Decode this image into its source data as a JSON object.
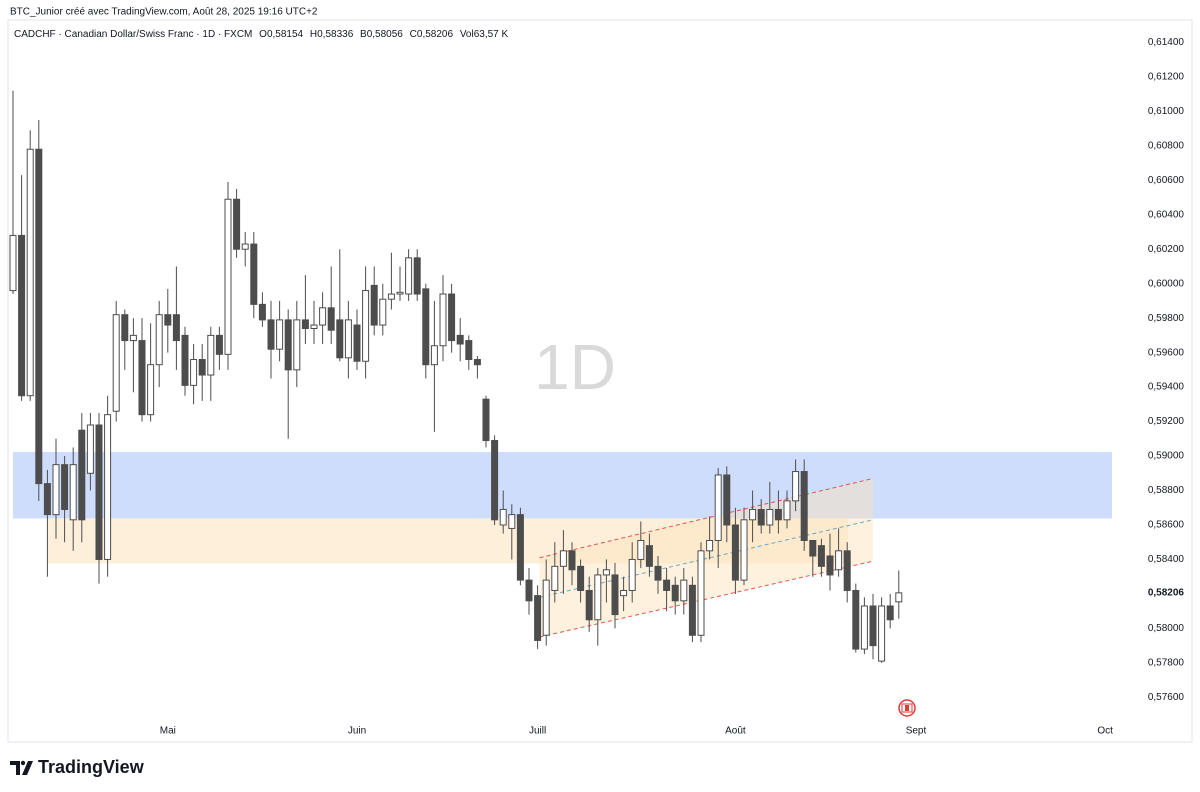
{
  "header": {
    "attribution": "BTC_Junior créé avec TradingView.com, Août 28, 2025 19:16 UTC+2"
  },
  "footer": {
    "brand": "TradingView"
  },
  "chart_data": {
    "type": "candlestick",
    "symbol": "CADCHF · Canadian Dollar/Swiss Franc · 1D · FXCM",
    "ohlc_text": [
      "O0,58154",
      "H0,58336",
      "B0,58056",
      "C0,58206",
      "Vol63,57 K"
    ],
    "watermark": "1D",
    "up_color": "#ffffff",
    "down_color": "#4d4d4d",
    "wick_color": "#4d4d4d",
    "grid": false,
    "ylim": [
      0.5748,
      0.6153
    ],
    "yticks": [
      {
        "value": 0.576,
        "label": "0,57600"
      },
      {
        "value": 0.578,
        "label": "0,57800"
      },
      {
        "value": 0.58,
        "label": "0,58000"
      },
      {
        "value": 0.584,
        "label": "0,58400"
      },
      {
        "value": 0.586,
        "label": "0,58600"
      },
      {
        "value": 0.588,
        "label": "0,58800"
      },
      {
        "value": 0.59,
        "label": "0,59000"
      },
      {
        "value": 0.592,
        "label": "0,59200"
      },
      {
        "value": 0.594,
        "label": "0,59400"
      },
      {
        "value": 0.596,
        "label": "0,59600"
      },
      {
        "value": 0.598,
        "label": "0,59800"
      },
      {
        "value": 0.6,
        "label": "0,60000"
      },
      {
        "value": 0.602,
        "label": "0,60200"
      },
      {
        "value": 0.604,
        "label": "0,60400"
      },
      {
        "value": 0.606,
        "label": "0,60600"
      },
      {
        "value": 0.608,
        "label": "0,60800"
      },
      {
        "value": 0.61,
        "label": "0,61000"
      },
      {
        "value": 0.612,
        "label": "0,61200"
      },
      {
        "value": 0.614,
        "label": "0,61400"
      }
    ],
    "last_price": {
      "value": 0.58206,
      "label": "0,58206"
    },
    "zones": [
      {
        "color": "#c6d7fb",
        "low": 0.58638,
        "high": 0.59023
      },
      {
        "color": "#fdedd6",
        "low": 0.58377,
        "high": 0.58638
      }
    ],
    "channel": {
      "color": "#e05555",
      "mid_color": "#6aa7c9",
      "fill": "#fde3b8",
      "upper": [
        0.5841,
        0.5887
      ],
      "middle": [
        0.5818,
        0.5863
      ],
      "lower": [
        0.5795,
        0.5839
      ]
    },
    "categories": [
      null,
      null,
      null,
      null,
      null,
      null,
      null,
      null,
      null,
      null,
      null,
      null,
      null,
      null,
      null,
      null,
      null,
      null,
      "Mai",
      null,
      null,
      null,
      null,
      null,
      null,
      null,
      null,
      null,
      null,
      null,
      null,
      null,
      null,
      null,
      null,
      null,
      null,
      null,
      null,
      null,
      "Juin",
      null,
      null,
      null,
      null,
      null,
      null,
      null,
      null,
      null,
      null,
      null,
      null,
      null,
      null,
      null,
      null,
      null,
      null,
      null,
      null,
      "Juill",
      null,
      null,
      null,
      null,
      null,
      null,
      null,
      null,
      null,
      null,
      null,
      null,
      null,
      null,
      null,
      null,
      null,
      null,
      null,
      null,
      null,
      null,
      "Août",
      null,
      null,
      null,
      null,
      null,
      null,
      null,
      null,
      null,
      null,
      null,
      null,
      null,
      null,
      null,
      null,
      null,
      null,
      null,
      null,
      "Sept",
      null,
      null,
      null,
      null,
      null,
      null,
      null,
      null,
      null,
      null,
      null,
      null,
      null,
      null,
      null,
      null,
      null,
      null,
      null,
      null,
      null,
      "Oct",
      null
    ],
    "open": [
      0.5996,
      0.6028,
      0.5935,
      0.6078,
      0.5884,
      0.5866,
      0.5895,
      0.5863,
      0.5915,
      0.589,
      0.5918,
      0.584,
      0.5926,
      0.5982,
      0.5967,
      0.5967,
      0.5924,
      0.5953,
      0.5982,
      0.5982,
      0.597,
      0.5941,
      0.5956,
      0.5947,
      0.597,
      0.5959,
      0.6049,
      0.602,
      0.6023,
      0.5988,
      0.5979,
      0.5962,
      0.5979,
      0.595,
      0.5979,
      0.5974,
      0.5976,
      0.5986,
      0.5979,
      0.5957,
      0.5976,
      0.5955,
      0.5999,
      0.5976,
      0.5991,
      0.5994,
      0.5994,
      0.6015,
      0.5997,
      0.5953,
      0.5964,
      0.5994,
      0.597,
      0.5967,
      0.5956,
      0.5933,
      0.5909,
      0.586,
      0.5858,
      0.5866,
      0.5828,
      0.5819,
      0.5796,
      0.5822,
      0.5836,
      0.5845,
      0.5836,
      0.5822,
      0.5805,
      0.5831,
      0.5831,
      0.5819,
      0.5822,
      0.584,
      0.5848,
      0.5836,
      0.5828,
      0.5825,
      0.5816,
      0.5825,
      0.5796,
      0.5845,
      0.5851,
      0.5889,
      0.586,
      0.5828,
      0.5863,
      0.5869,
      0.586,
      0.5869,
      0.5863,
      0.5874,
      0.5891,
      0.5851,
      0.5848,
      0.5842,
      0.5834,
      0.5845,
      0.5822,
      0.5788,
      0.5813,
      0.5781,
      0.5813,
      0.58154,
      null,
      null,
      null,
      null,
      null,
      null,
      null,
      null,
      null,
      null,
      null,
      null,
      null,
      null,
      null,
      null,
      null,
      null,
      null,
      null,
      null,
      null,
      null,
      null,
      null
    ],
    "high": [
      0.6112,
      0.6063,
      0.6089,
      0.6095,
      0.5892,
      0.591,
      0.59,
      0.5905,
      0.5925,
      0.5925,
      0.5925,
      0.5935,
      0.599,
      0.5985,
      0.598,
      0.598,
      0.5977,
      0.599,
      0.5997,
      0.601,
      0.5975,
      0.5965,
      0.5965,
      0.5975,
      0.5975,
      0.6059,
      0.6055,
      0.603,
      0.603,
      0.5995,
      0.599,
      0.599,
      0.5985,
      0.599,
      0.6005,
      0.599,
      0.5995,
      0.601,
      0.602,
      0.599,
      0.5985,
      0.601,
      0.601,
      0.6,
      0.6018,
      0.601,
      0.602,
      0.602,
      0.6,
      0.599,
      0.6005,
      0.6,
      0.598,
      0.597,
      0.5958,
      0.5935,
      0.5912,
      0.588,
      0.5872,
      0.587,
      0.5835,
      0.5825,
      0.584,
      0.585,
      0.5857,
      0.585,
      0.584,
      0.583,
      0.5835,
      0.584,
      0.5838,
      0.583,
      0.585,
      0.5862,
      0.5855,
      0.5842,
      0.5835,
      0.583,
      0.5835,
      0.583,
      0.585,
      0.5865,
      0.5893,
      0.5894,
      0.587,
      0.587,
      0.588,
      0.5875,
      0.5885,
      0.588,
      0.588,
      0.5898,
      0.5898,
      0.585,
      0.5852,
      0.5855,
      0.5858,
      0.585,
      0.5826,
      0.5818,
      0.582,
      0.5818,
      0.582,
      0.58336,
      null,
      null,
      null,
      null,
      null,
      null,
      null,
      null,
      null,
      null,
      null,
      null,
      null,
      null,
      null,
      null,
      null,
      null,
      null,
      null,
      null,
      null,
      null,
      null,
      null
    ],
    "low": [
      0.5994,
      0.5932,
      0.5932,
      0.5874,
      0.583,
      0.5852,
      0.585,
      0.5845,
      0.585,
      0.588,
      0.5826,
      0.583,
      0.592,
      0.595,
      0.5937,
      0.592,
      0.592,
      0.594,
      0.596,
      0.595,
      0.5935,
      0.593,
      0.5932,
      0.5932,
      0.595,
      0.595,
      0.6015,
      0.601,
      0.598,
      0.5975,
      0.5945,
      0.5955,
      0.591,
      0.594,
      0.5965,
      0.5965,
      0.5965,
      0.5965,
      0.5955,
      0.5945,
      0.595,
      0.5945,
      0.597,
      0.597,
      0.5985,
      0.599,
      0.599,
      0.599,
      0.5945,
      0.5914,
      0.5955,
      0.596,
      0.5955,
      0.595,
      0.5945,
      0.5905,
      0.586,
      0.5855,
      0.584,
      0.5825,
      0.5808,
      0.5788,
      0.579,
      0.5815,
      0.582,
      0.5825,
      0.5815,
      0.5798,
      0.579,
      0.5815,
      0.58,
      0.581,
      0.5815,
      0.5835,
      0.583,
      0.582,
      0.581,
      0.5808,
      0.5808,
      0.5792,
      0.5792,
      0.584,
      0.5835,
      0.585,
      0.582,
      0.5825,
      0.585,
      0.5855,
      0.5855,
      0.5855,
      0.5858,
      0.5868,
      0.5845,
      0.583,
      0.583,
      0.5822,
      0.583,
      0.5815,
      0.5786,
      0.5785,
      0.5782,
      0.578,
      0.58,
      0.58056,
      null,
      null,
      null,
      null,
      null,
      null,
      null,
      null,
      null,
      null,
      null,
      null,
      null,
      null,
      null,
      null,
      null,
      null,
      null,
      null,
      null,
      null,
      null,
      null,
      null
    ],
    "close": [
      0.6028,
      0.5935,
      0.6078,
      0.5884,
      0.5866,
      0.5895,
      0.5869,
      0.5895,
      0.5863,
      0.5918,
      0.584,
      0.5924,
      0.5982,
      0.5967,
      0.597,
      0.5924,
      0.5953,
      0.5982,
      0.5976,
      0.5967,
      0.5941,
      0.5956,
      0.5947,
      0.597,
      0.5959,
      0.6049,
      0.602,
      0.6023,
      0.5988,
      0.5979,
      0.5962,
      0.5979,
      0.595,
      0.5979,
      0.5974,
      0.5976,
      0.5986,
      0.5973,
      0.5957,
      0.5979,
      0.5955,
      0.5996,
      0.5976,
      0.5991,
      0.5994,
      0.5995,
      0.6015,
      0.5994,
      0.5953,
      0.5964,
      0.5994,
      0.5967,
      0.5965,
      0.5956,
      0.5953,
      0.5909,
      0.5863,
      0.5869,
      0.5866,
      0.5828,
      0.5816,
      0.5793,
      0.5828,
      0.5836,
      0.5845,
      0.5834,
      0.5822,
      0.5805,
      0.5831,
      0.5834,
      0.5808,
      0.5822,
      0.584,
      0.5851,
      0.5836,
      0.5828,
      0.5822,
      0.5816,
      0.5828,
      0.5796,
      0.5845,
      0.5851,
      0.5889,
      0.586,
      0.5828,
      0.5863,
      0.5869,
      0.586,
      0.5869,
      0.5863,
      0.5874,
      0.5891,
      0.5851,
      0.5842,
      0.5836,
      0.5831,
      0.5845,
      0.5822,
      0.5788,
      0.5813,
      0.579,
      0.5813,
      0.5805,
      0.58206,
      null,
      null,
      null,
      null,
      null,
      null,
      null,
      null,
      null,
      null,
      null,
      null,
      null,
      null,
      null,
      null,
      null,
      null,
      null,
      null,
      null,
      null,
      null,
      null,
      null
    ]
  }
}
